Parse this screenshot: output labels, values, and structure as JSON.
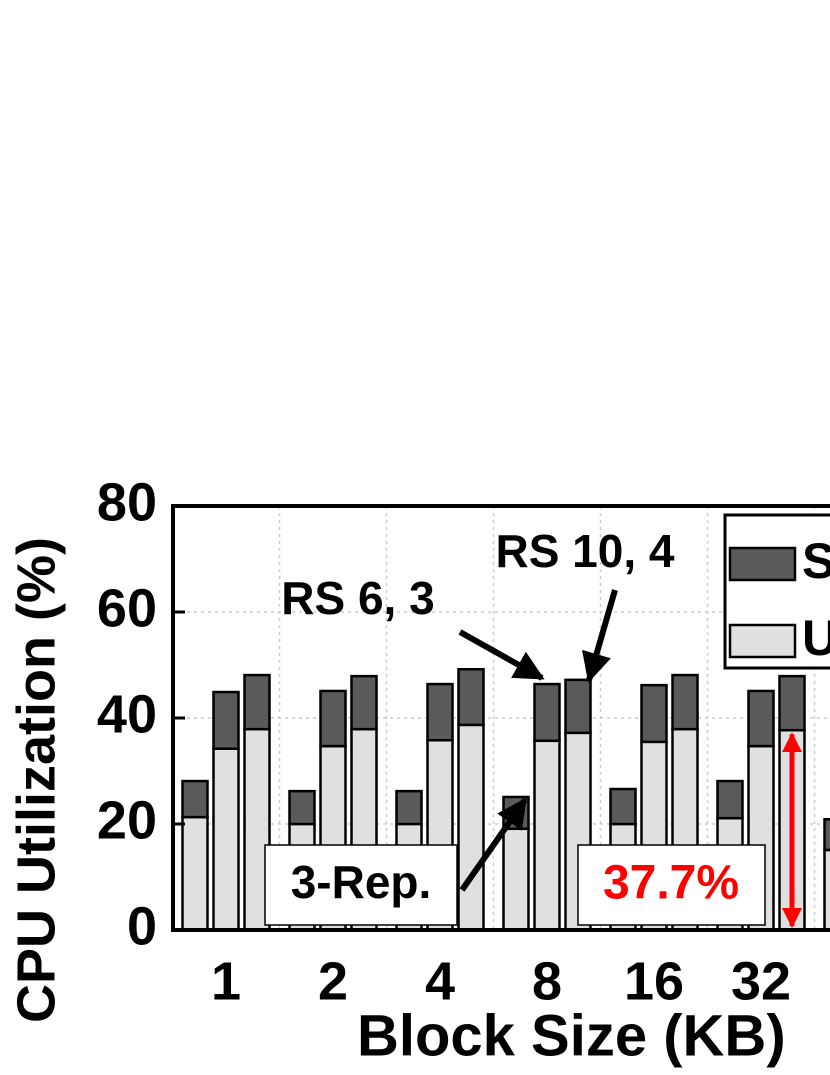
{
  "chart_data": {
    "type": "stacked-grouped-bar",
    "y_label": "CPU Utilization (%)",
    "x_label": "Block Size (KB)",
    "categories": [
      "1",
      "2",
      "4",
      "8",
      "16",
      "32",
      null
    ],
    "groups": [
      "3-Rep.",
      "RS 6, 3",
      "RS 10, 4"
    ],
    "series": [
      {
        "name": "User",
        "color": "#e0e0e0",
        "values": [
          [
            21.3,
            34.2,
            37.9
          ],
          [
            20,
            34.7,
            37.9
          ],
          [
            20,
            35.8,
            38.7
          ],
          [
            19.1,
            35.7,
            37.2
          ],
          [
            20,
            35.5,
            37.9
          ],
          [
            21.1,
            34.7,
            37.7
          ],
          [
            15.1,
            null,
            null
          ]
        ]
      },
      {
        "name": "System",
        "color": "#5a5a5a",
        "values": [
          [
            6.8,
            10.7,
            10.2
          ],
          [
            6.2,
            10.4,
            10
          ],
          [
            6.2,
            10.6,
            10.5
          ],
          [
            6,
            10.7,
            10
          ],
          [
            6.6,
            10.7,
            10.2
          ],
          [
            7,
            10.4,
            10.2
          ],
          [
            5.8,
            null,
            null
          ]
        ]
      }
    ],
    "ylim": [
      0,
      80
    ],
    "yticks": [
      0,
      20,
      40,
      60,
      80
    ],
    "grid": true,
    "annotations": [
      {
        "text": "3-Rep."
      },
      {
        "text": "RS 6, 3"
      },
      {
        "text": "RS 10, 4"
      },
      {
        "text": "37.7%",
        "value": 37.7,
        "color": "#ff0000"
      }
    ]
  }
}
